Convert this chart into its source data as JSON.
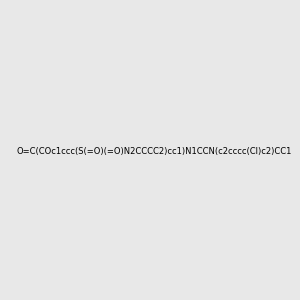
{
  "smiles": "O=C(COc1ccc(S(=O)(=O)N2CCCC2)cc1)N1CCN(c2cccc(Cl)c2)CC1",
  "image_size": 300,
  "background_color": "#e8e8e8",
  "title": ""
}
